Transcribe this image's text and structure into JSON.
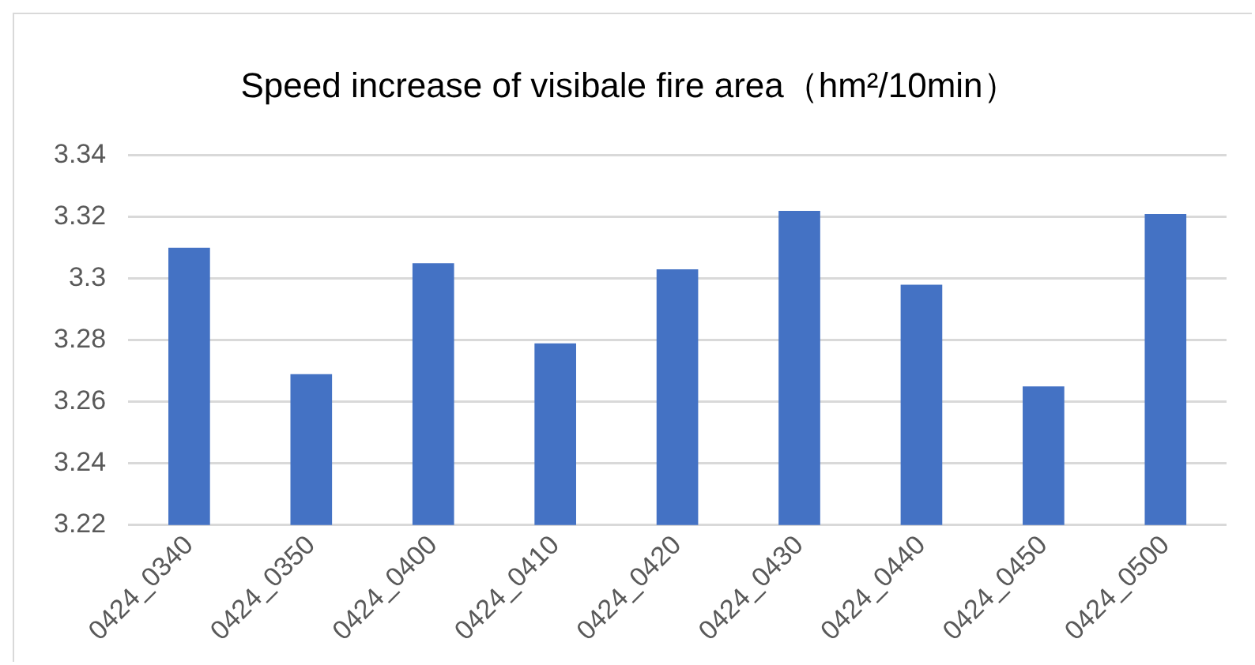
{
  "chart_data": {
    "type": "bar",
    "title": "Speed increase of visibale fire area（hm²/10min）",
    "categories": [
      "0424_0340",
      "0424_0350",
      "0424_0400",
      "0424_0410",
      "0424_0420",
      "0424_0430",
      "0424_0440",
      "0424_0450",
      "0424_0500"
    ],
    "values": [
      3.31,
      3.269,
      3.305,
      3.279,
      3.303,
      3.322,
      3.298,
      3.265,
      3.321
    ],
    "color": "#4472c4",
    "ylim": [
      3.22,
      3.34
    ],
    "yticks": [
      3.22,
      3.24,
      3.26,
      3.28,
      3.3,
      3.32,
      3.34
    ],
    "grid": "y",
    "legend": false
  }
}
